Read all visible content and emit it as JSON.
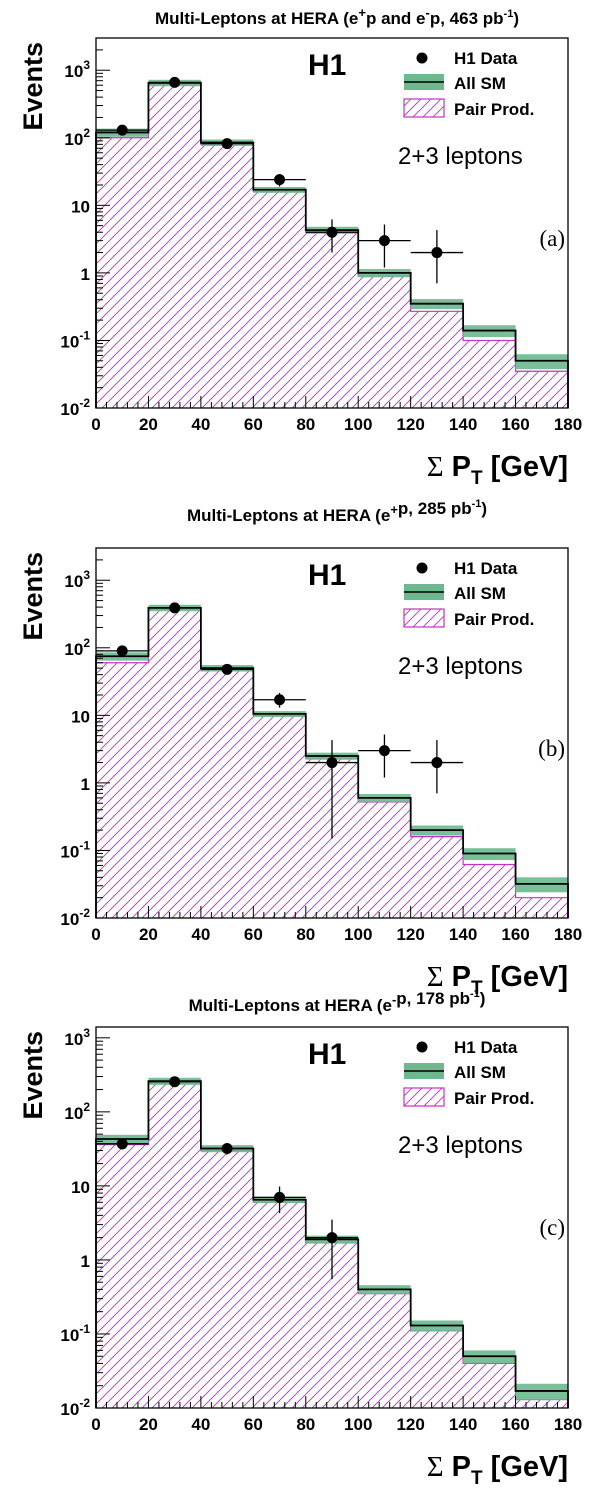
{
  "chart_data": [
    {
      "type": "bar",
      "title": {
        "pre": "Multi-Leptons at HERA (e",
        "sup1": "+",
        "mid": "p and e",
        "sup2": "-",
        "post": "p, 463 pb",
        "sup3": "-1",
        "end": ")"
      },
      "ylabel": "Events",
      "xlabel": {
        "sigma": "Σ",
        "p": "P",
        "sub": "T",
        "unit": "[GeV]"
      },
      "experiment": "H1",
      "legend": {
        "data": "H1 Data",
        "sm": "All SM",
        "pair": "Pair Prod."
      },
      "annotation": "2+3 leptons",
      "panel_label": "(a)",
      "x_ticks": [
        "0",
        "20",
        "40",
        "60",
        "80",
        "100",
        "120",
        "140",
        "160",
        "180"
      ],
      "y_ticks": [
        {
          "base": "10",
          "exp": "-2",
          "value": 0.01
        },
        {
          "base": "10",
          "exp": "-1",
          "value": 0.1
        },
        {
          "base": "1",
          "exp": "",
          "value": 1
        },
        {
          "base": "10",
          "exp": "",
          "value": 10
        },
        {
          "base": "10",
          "exp": "2",
          "value": 100
        },
        {
          "base": "10",
          "exp": "3",
          "value": 1000
        }
      ],
      "xlim": [
        0,
        180
      ],
      "ylim": [
        0.01,
        3000
      ],
      "log_y": true,
      "legend_position": "top-right",
      "bin_edges": [
        0,
        20,
        40,
        60,
        80,
        100,
        120,
        140,
        160,
        180
      ],
      "all_sm": [
        120,
        650,
        85,
        17,
        4.3,
        1.0,
        0.35,
        0.14,
        0.05
      ],
      "all_sm_err": [
        0.14,
        0.11,
        0.11,
        0.1,
        0.12,
        0.14,
        0.17,
        0.2,
        0.25
      ],
      "pair_prod": [
        100,
        620,
        80,
        16,
        4.0,
        0.9,
        0.27,
        0.1,
        0.035
      ],
      "data": [
        {
          "x": 10,
          "y": 130,
          "lo": 115,
          "hi": 145
        },
        {
          "x": 30,
          "y": 660,
          "lo": 625,
          "hi": 695
        },
        {
          "x": 50,
          "y": 82,
          "lo": 73,
          "hi": 92
        },
        {
          "x": 70,
          "y": 24,
          "lo": 19,
          "hi": 29
        },
        {
          "x": 90,
          "y": 4,
          "lo": 2,
          "hi": 6.2
        },
        {
          "x": 110,
          "y": 3,
          "lo": 1.2,
          "hi": 5.2
        },
        {
          "x": 130,
          "y": 2,
          "lo": 0.7,
          "hi": 4.3
        }
      ]
    },
    {
      "type": "bar",
      "title": {
        "pre": "Multi-Leptons at HERA (e",
        "sup1": "+",
        "mid": "",
        "sup2": "",
        "post": "p, 285 pb",
        "sup3": "-1",
        "end": ")"
      },
      "ylabel": "Events",
      "xlabel": {
        "sigma": "Σ",
        "p": "P",
        "sub": "T",
        "unit": "[GeV]"
      },
      "experiment": "H1",
      "legend": {
        "data": "H1 Data",
        "sm": "All SM",
        "pair": "Pair Prod."
      },
      "annotation": "2+3 leptons",
      "panel_label": "(b)",
      "x_ticks": [
        "0",
        "20",
        "40",
        "60",
        "80",
        "100",
        "120",
        "140",
        "160",
        "180"
      ],
      "y_ticks": [
        {
          "base": "10",
          "exp": "-2",
          "value": 0.01
        },
        {
          "base": "10",
          "exp": "-1",
          "value": 0.1
        },
        {
          "base": "1",
          "exp": "",
          "value": 1
        },
        {
          "base": "10",
          "exp": "",
          "value": 10
        },
        {
          "base": "10",
          "exp": "2",
          "value": 100
        },
        {
          "base": "10",
          "exp": "3",
          "value": 1000
        }
      ],
      "xlim": [
        0,
        180
      ],
      "ylim": [
        0.01,
        3000
      ],
      "log_y": true,
      "legend_position": "top-right",
      "bin_edges": [
        0,
        20,
        40,
        60,
        80,
        100,
        120,
        140,
        160,
        180
      ],
      "all_sm": [
        75,
        390,
        50,
        10.5,
        2.5,
        0.6,
        0.2,
        0.09,
        0.032
      ],
      "all_sm_err": [
        0.14,
        0.11,
        0.11,
        0.1,
        0.12,
        0.14,
        0.17,
        0.2,
        0.25
      ],
      "pair_prod": [
        60,
        370,
        46,
        10,
        2.3,
        0.52,
        0.16,
        0.062,
        0.02
      ],
      "data": [
        {
          "x": 10,
          "y": 90,
          "lo": 80,
          "hi": 100
        },
        {
          "x": 30,
          "y": 390,
          "lo": 370,
          "hi": 410
        },
        {
          "x": 50,
          "y": 48,
          "lo": 41,
          "hi": 55
        },
        {
          "x": 70,
          "y": 17,
          "lo": 13,
          "hi": 21.5
        },
        {
          "x": 90,
          "y": 2,
          "lo": 0.15,
          "hi": 4.3
        },
        {
          "x": 110,
          "y": 3,
          "lo": 1.2,
          "hi": 5.2
        },
        {
          "x": 130,
          "y": 2,
          "lo": 0.7,
          "hi": 4.3
        }
      ]
    },
    {
      "type": "bar",
      "title": {
        "pre": "Multi-Leptons at HERA (e",
        "sup1": "-",
        "mid": "",
        "sup2": "",
        "post": "p, 178 pb",
        "sup3": "-1",
        "end": ")"
      },
      "ylabel": "Events",
      "xlabel": {
        "sigma": "Σ",
        "p": "P",
        "sub": "T",
        "unit": "[GeV]"
      },
      "experiment": "H1",
      "legend": {
        "data": "H1 Data",
        "sm": "All SM",
        "pair": "Pair Prod."
      },
      "annotation": "2+3 leptons",
      "panel_label": "(c)",
      "x_ticks": [
        "0",
        "20",
        "40",
        "60",
        "80",
        "100",
        "120",
        "140",
        "160",
        "180"
      ],
      "y_ticks": [
        {
          "base": "10",
          "exp": "-2",
          "value": 0.01
        },
        {
          "base": "10",
          "exp": "-1",
          "value": 0.1
        },
        {
          "base": "1",
          "exp": "",
          "value": 1
        },
        {
          "base": "10",
          "exp": "",
          "value": 10
        },
        {
          "base": "10",
          "exp": "2",
          "value": 100
        },
        {
          "base": "10",
          "exp": "3",
          "value": 1000
        }
      ],
      "xlim": [
        0,
        180
      ],
      "ylim": [
        0.01,
        1400
      ],
      "log_y": true,
      "legend_position": "top-right",
      "bin_edges": [
        0,
        20,
        40,
        60,
        80,
        100,
        120,
        140,
        160,
        180
      ],
      "all_sm": [
        43,
        260,
        32,
        6.5,
        1.9,
        0.4,
        0.13,
        0.05,
        0.017
      ],
      "all_sm_err": [
        0.14,
        0.11,
        0.11,
        0.1,
        0.12,
        0.14,
        0.17,
        0.2,
        0.25
      ],
      "pair_prod": [
        36,
        245,
        30,
        6.0,
        1.7,
        0.35,
        0.11,
        0.04,
        0.013
      ],
      "data": [
        {
          "x": 10,
          "y": 37,
          "lo": 31,
          "hi": 43
        },
        {
          "x": 30,
          "y": 255,
          "lo": 240,
          "hi": 271
        },
        {
          "x": 50,
          "y": 32,
          "lo": 26.5,
          "hi": 37.5
        },
        {
          "x": 70,
          "y": 7,
          "lo": 4.3,
          "hi": 9.8
        },
        {
          "x": 90,
          "y": 2,
          "lo": 0.55,
          "hi": 3.5
        }
      ]
    }
  ],
  "colors": {
    "sm_band": "#6db88f",
    "pair_hatch": "#c233c2",
    "axis": "#000000",
    "data": "#000000"
  }
}
